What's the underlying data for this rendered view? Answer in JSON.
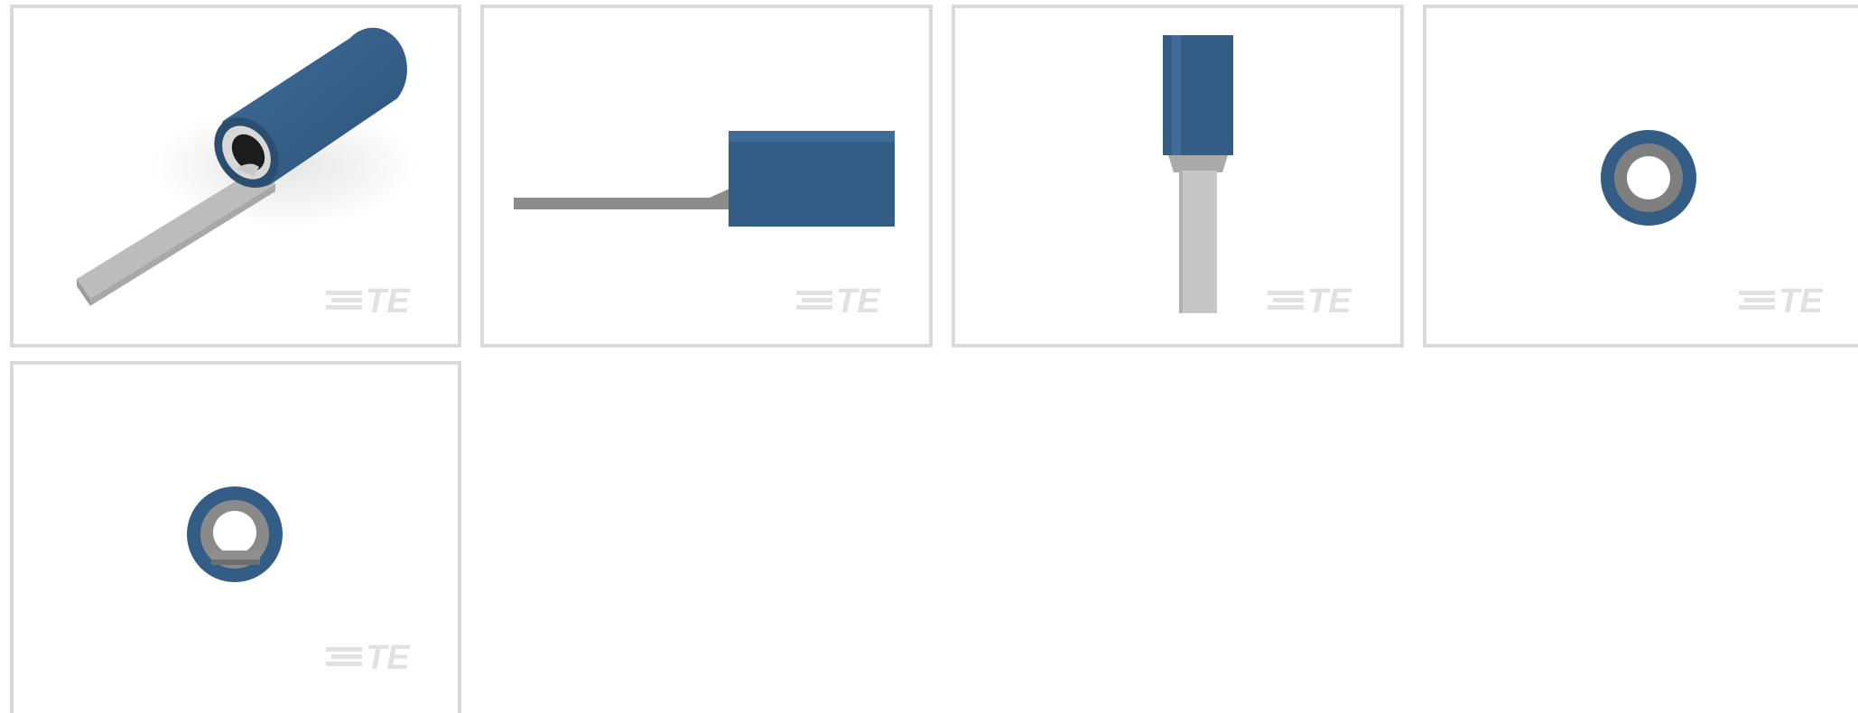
{
  "gallery": {
    "brand_logo_text": "TE",
    "colors": {
      "thumbnail_border": "#d9d9d9",
      "insulation_blue": "#345d86",
      "insulation_blue_dark": "#2a4d70",
      "metal_grey": "#bdbdbd",
      "metal_grey_dark": "#8c8c8c",
      "logo_grey": "#e1e1e1"
    },
    "thumbnails": [
      {
        "view": "isometric-view",
        "icon": "blade-terminal-isometric-icon"
      },
      {
        "view": "side-view",
        "icon": "blade-terminal-side-icon"
      },
      {
        "view": "top-view",
        "icon": "blade-terminal-top-icon"
      },
      {
        "view": "end-view",
        "icon": "blade-terminal-end-icon"
      },
      {
        "view": "rear-view",
        "icon": "blade-terminal-rear-icon"
      }
    ]
  }
}
